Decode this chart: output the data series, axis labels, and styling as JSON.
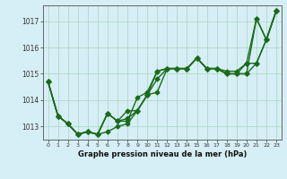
{
  "xlabel": "Graphe pression niveau de la mer (hPa)",
  "xlim": [
    -0.5,
    23.5
  ],
  "ylim": [
    1012.5,
    1017.6
  ],
  "yticks": [
    1013,
    1014,
    1015,
    1016,
    1017
  ],
  "xticks": [
    0,
    1,
    2,
    3,
    4,
    5,
    6,
    7,
    8,
    9,
    10,
    11,
    12,
    13,
    14,
    15,
    16,
    17,
    18,
    19,
    20,
    21,
    22,
    23
  ],
  "bg_color": "#d6eef5",
  "grid_color": "#a8d5c2",
  "line_color": "#1a6b1a",
  "series": [
    [
      1014.7,
      1013.4,
      1013.1,
      1012.7,
      1012.8,
      1012.7,
      1012.8,
      1013.0,
      1013.1,
      1013.6,
      1014.2,
      1014.3,
      1015.2,
      1015.2,
      1015.2,
      1015.6,
      1015.2,
      1015.2,
      1015.0,
      1015.0,
      1015.0,
      1017.1,
      1016.3,
      1017.4
    ],
    [
      1014.7,
      1013.4,
      1013.1,
      1012.7,
      1012.8,
      1012.7,
      1013.5,
      1013.2,
      1013.6,
      1013.6,
      1014.2,
      1014.8,
      1015.2,
      1015.2,
      1015.2,
      1015.6,
      1015.2,
      1015.2,
      1015.0,
      1015.0,
      1015.0,
      1015.4,
      1016.3,
      1017.4
    ],
    [
      1014.7,
      1013.4,
      1013.1,
      1012.7,
      1012.8,
      1012.7,
      1013.5,
      1013.2,
      1013.2,
      1014.1,
      1014.3,
      1015.1,
      1015.2,
      1015.2,
      1015.2,
      1015.6,
      1015.2,
      1015.2,
      1015.0,
      1015.0,
      1015.4,
      1017.1,
      1016.3,
      1017.4
    ],
    [
      1014.7,
      1013.4,
      1013.1,
      1012.7,
      1012.8,
      1012.7,
      1013.5,
      1013.2,
      1013.3,
      1013.6,
      1014.2,
      1015.1,
      1015.2,
      1015.2,
      1015.2,
      1015.6,
      1015.2,
      1015.2,
      1015.1,
      1015.1,
      1015.4,
      1015.4,
      1016.3,
      1017.4
    ]
  ],
  "marker": "D",
  "markersize": 2.5,
  "linewidth": 1.0
}
